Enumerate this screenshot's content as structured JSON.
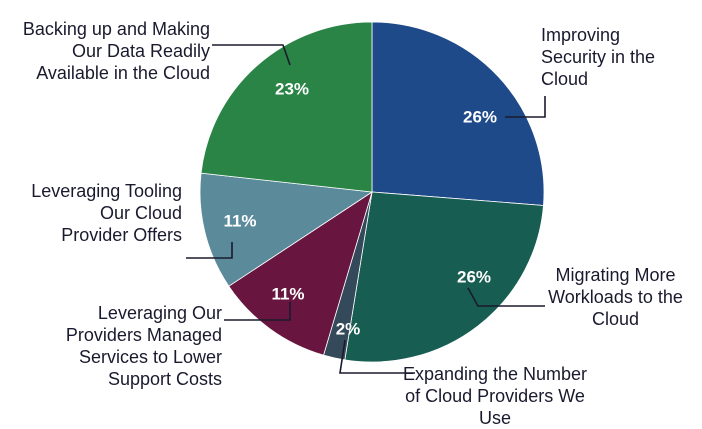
{
  "chart_data": {
    "type": "pie",
    "categories": [
      "Improving Security in the Cloud",
      "Migrating More Workloads to the Cloud",
      "Expanding the Number of Cloud Providers We Use",
      "Leveraging Our Providers Managed Services to Lower Support Costs",
      "Leveraging Tooling Our Cloud Provider Offers",
      "Backing up and Making Our Data Readily Available in the Cloud"
    ],
    "values": [
      26,
      26,
      2,
      11,
      11,
      23
    ],
    "value_labels": [
      "26%",
      "26%",
      "2%",
      "11%",
      "11%",
      "23%"
    ],
    "colors": [
      "#1f4a8a",
      "#175d51",
      "#34495a",
      "#68163f",
      "#5b8b9b",
      "#2a8446"
    ]
  }
}
